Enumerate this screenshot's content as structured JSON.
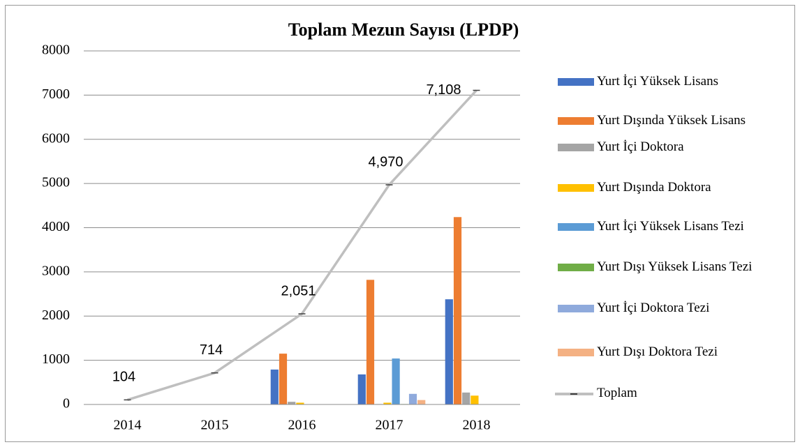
{
  "chart_data": {
    "type": "bar",
    "title": "Toplam Mezun Sayısı (LPDP)",
    "categories": [
      "2014",
      "2015",
      "2016",
      "2017",
      "2018"
    ],
    "ylim": [
      0,
      8000
    ],
    "yticks": [
      0,
      1000,
      2000,
      3000,
      4000,
      5000,
      6000,
      7000,
      8000
    ],
    "grid": true,
    "legend": "right",
    "series": [
      {
        "name": "Yurt İçi Yüksek Lisans",
        "color": "#4472c4",
        "values": [
          0,
          0,
          790,
          680,
          2380
        ]
      },
      {
        "name": "Yurt Dışında Yüksek Lisans",
        "color": "#ed7d31",
        "values": [
          0,
          0,
          1150,
          2820,
          4240
        ]
      },
      {
        "name": "Yurt İçi Doktora",
        "color": "#a5a5a5",
        "values": [
          0,
          0,
          60,
          10,
          270
        ]
      },
      {
        "name": "Yurt Dışında Doktora",
        "color": "#ffc000",
        "values": [
          0,
          0,
          40,
          40,
          200
        ]
      },
      {
        "name": "Yurt İçi Yüksek Lisans Tezi",
        "color": "#5b9bd5",
        "values": [
          0,
          0,
          0,
          1040,
          0
        ]
      },
      {
        "name": "Yurt Dışı Yüksek Lisans Tezi",
        "color": "#70ad47",
        "values": [
          0,
          0,
          0,
          10,
          0
        ]
      },
      {
        "name": "Yurt İçi Doktora Tezi",
        "color": "#8faadc",
        "values": [
          0,
          0,
          0,
          240,
          0
        ]
      },
      {
        "name": "Yurt Dışı Doktora Tezi",
        "color": "#f4b183",
        "values": [
          0,
          0,
          0,
          100,
          0
        ]
      },
      {
        "name": "Toplam",
        "type": "line",
        "color": "#bfbfbf",
        "values": [
          104,
          714,
          2051,
          4970,
          7108
        ],
        "value_labels": [
          "104",
          "714",
          "2,051",
          "4,970",
          "7,108"
        ]
      }
    ]
  }
}
